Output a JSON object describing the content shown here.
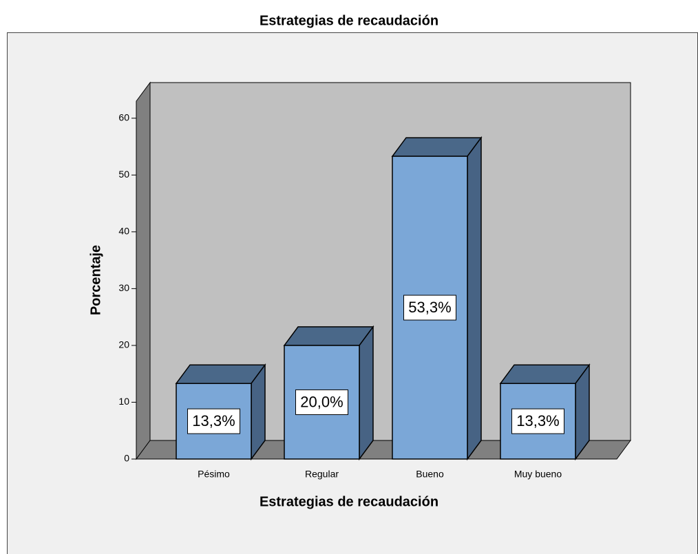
{
  "chart_data": {
    "type": "bar3d",
    "title": "Estrategias de recaudación",
    "x_label": "Estrategias de recaudación",
    "y_label": "Porcentaje",
    "categories": [
      "Pésimo",
      "Regular",
      "Bueno",
      "Muy bueno"
    ],
    "values": [
      13.3,
      20.0,
      53.3,
      13.3
    ],
    "value_labels": [
      "13,3%",
      "20,0%",
      "53,3%",
      "13,3%"
    ],
    "color": "#7ba7d7",
    "ylim": [
      0,
      63
    ],
    "yticks": [
      0,
      10,
      20,
      30,
      40,
      50,
      60
    ]
  }
}
